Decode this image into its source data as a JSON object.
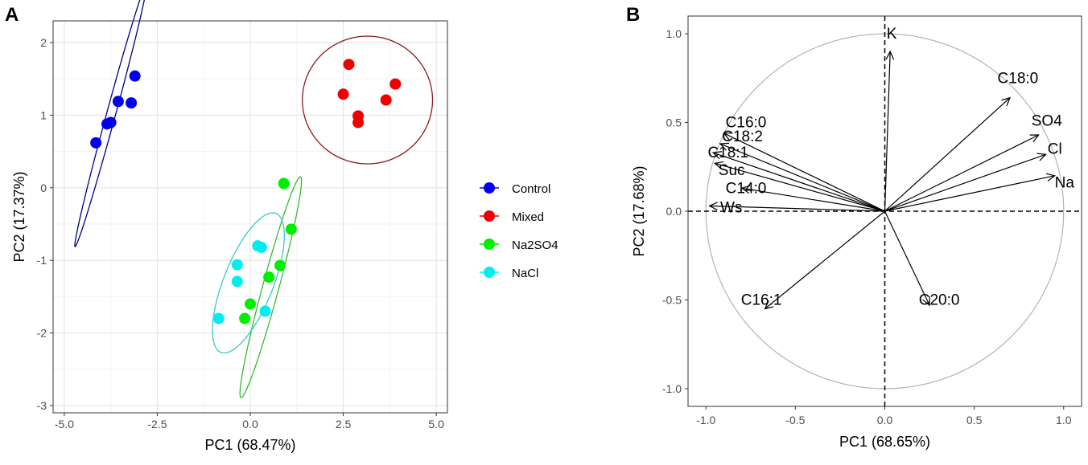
{
  "chart_data": [
    {
      "panel": "A",
      "type": "scatter",
      "xlabel": "PC1 (68.47%)",
      "ylabel": "PC2 (17.37%)",
      "xlim": [
        -5.3,
        5.3
      ],
      "ylim": [
        -3.1,
        2.3
      ],
      "xticks": [
        -5.0,
        -2.5,
        0.0,
        2.5,
        5.0
      ],
      "xtick_labels": [
        "-5.0",
        "-2.5",
        "0.0",
        "2.5",
        "5.0"
      ],
      "yticks": [
        -3,
        -2,
        -1,
        0,
        1,
        2
      ],
      "ytick_labels": [
        "-3",
        "-2",
        "-1",
        "0",
        "1",
        "2"
      ],
      "grid": true,
      "legend_position": "right",
      "series": [
        {
          "name": "Control",
          "color": "#0000ee",
          "points": [
            [
              -3.1,
              1.54
            ],
            [
              -3.55,
              1.19
            ],
            [
              -3.2,
              1.17
            ],
            [
              -3.75,
              0.9
            ],
            [
              -3.85,
              0.88
            ],
            [
              -4.15,
              0.62
            ]
          ],
          "ellipse": {
            "center": [
              -3.75,
              1.0
            ],
            "semi_major": 2.05,
            "semi_minor": 0.11,
            "angle_deg": 62
          }
        },
        {
          "name": "Mixed",
          "color": "#ee0000",
          "points": [
            [
              2.65,
              1.7
            ],
            [
              3.9,
              1.43
            ],
            [
              2.5,
              1.29
            ],
            [
              3.65,
              1.21
            ],
            [
              2.9,
              0.99
            ],
            [
              2.9,
              0.9
            ]
          ],
          "ellipse": {
            "center": [
              3.15,
              1.21
            ],
            "semi_major": 1.75,
            "semi_minor": 0.88,
            "angle_deg": 0
          }
        },
        {
          "name": "Na2SO4",
          "color": "#00ee00",
          "points": [
            [
              0.9,
              0.06
            ],
            [
              1.1,
              -0.57
            ],
            [
              0.8,
              -1.07
            ],
            [
              0.5,
              -1.23
            ],
            [
              0.0,
              -1.6
            ],
            [
              -0.15,
              -1.8
            ]
          ],
          "ellipse": {
            "center": [
              0.55,
              -1.37
            ],
            "semi_major": 1.72,
            "semi_minor": 0.2,
            "angle_deg": 62
          }
        },
        {
          "name": "NaCl",
          "color": "#00eeee",
          "points": [
            [
              0.2,
              -0.8
            ],
            [
              0.3,
              -0.82
            ],
            [
              -0.35,
              -1.06
            ],
            [
              -0.35,
              -1.29
            ],
            [
              0.4,
              -1.7
            ],
            [
              -0.85,
              -1.8
            ]
          ],
          "ellipse": {
            "center": [
              -0.05,
              -1.31
            ],
            "semi_major": 1.25,
            "semi_minor": 0.55,
            "angle_deg": 45
          }
        }
      ]
    },
    {
      "panel": "B",
      "type": "biplot",
      "xlabel": "PC1 (68.65%)",
      "ylabel": "PC2 (17.68%)",
      "xlim": [
        -1.1,
        1.1
      ],
      "ylim": [
        -1.1,
        1.1
      ],
      "xticks": [
        -1.0,
        -0.5,
        0.0,
        0.5,
        1.0
      ],
      "xtick_labels": [
        "-1.0",
        "-0.5",
        "0.0",
        "0.5",
        "1.0"
      ],
      "yticks": [
        -1.0,
        -0.5,
        0.0,
        0.5,
        1.0
      ],
      "ytick_labels": [
        "-1.0",
        "-0.5",
        "0.0",
        "0.5",
        "1.0"
      ],
      "grid": false,
      "unit_circle": true,
      "vectors": [
        {
          "name": "K",
          "x": 0.03,
          "y": 0.9
        },
        {
          "name": "C18:0",
          "x": 0.7,
          "y": 0.64
        },
        {
          "name": "SO4",
          "x": 0.86,
          "y": 0.43
        },
        {
          "name": "Cl",
          "x": 0.9,
          "y": 0.32
        },
        {
          "name": "Na",
          "x": 0.95,
          "y": 0.2
        },
        {
          "name": "C16:0",
          "x": -0.9,
          "y": 0.44
        },
        {
          "name": "C18:2",
          "x": -0.92,
          "y": 0.38
        },
        {
          "name": "C18:1",
          "x": -0.96,
          "y": 0.33
        },
        {
          "name": "Suc",
          "x": -0.95,
          "y": 0.27
        },
        {
          "name": "C14:0",
          "x": -0.8,
          "y": 0.13
        },
        {
          "name": "Ws",
          "x": -0.98,
          "y": 0.03
        },
        {
          "name": "C16:1",
          "x": -0.67,
          "y": -0.55
        },
        {
          "name": "C20:0",
          "x": 0.25,
          "y": -0.53
        }
      ]
    }
  ],
  "panel_labels": {
    "a": "A",
    "b": "B"
  }
}
